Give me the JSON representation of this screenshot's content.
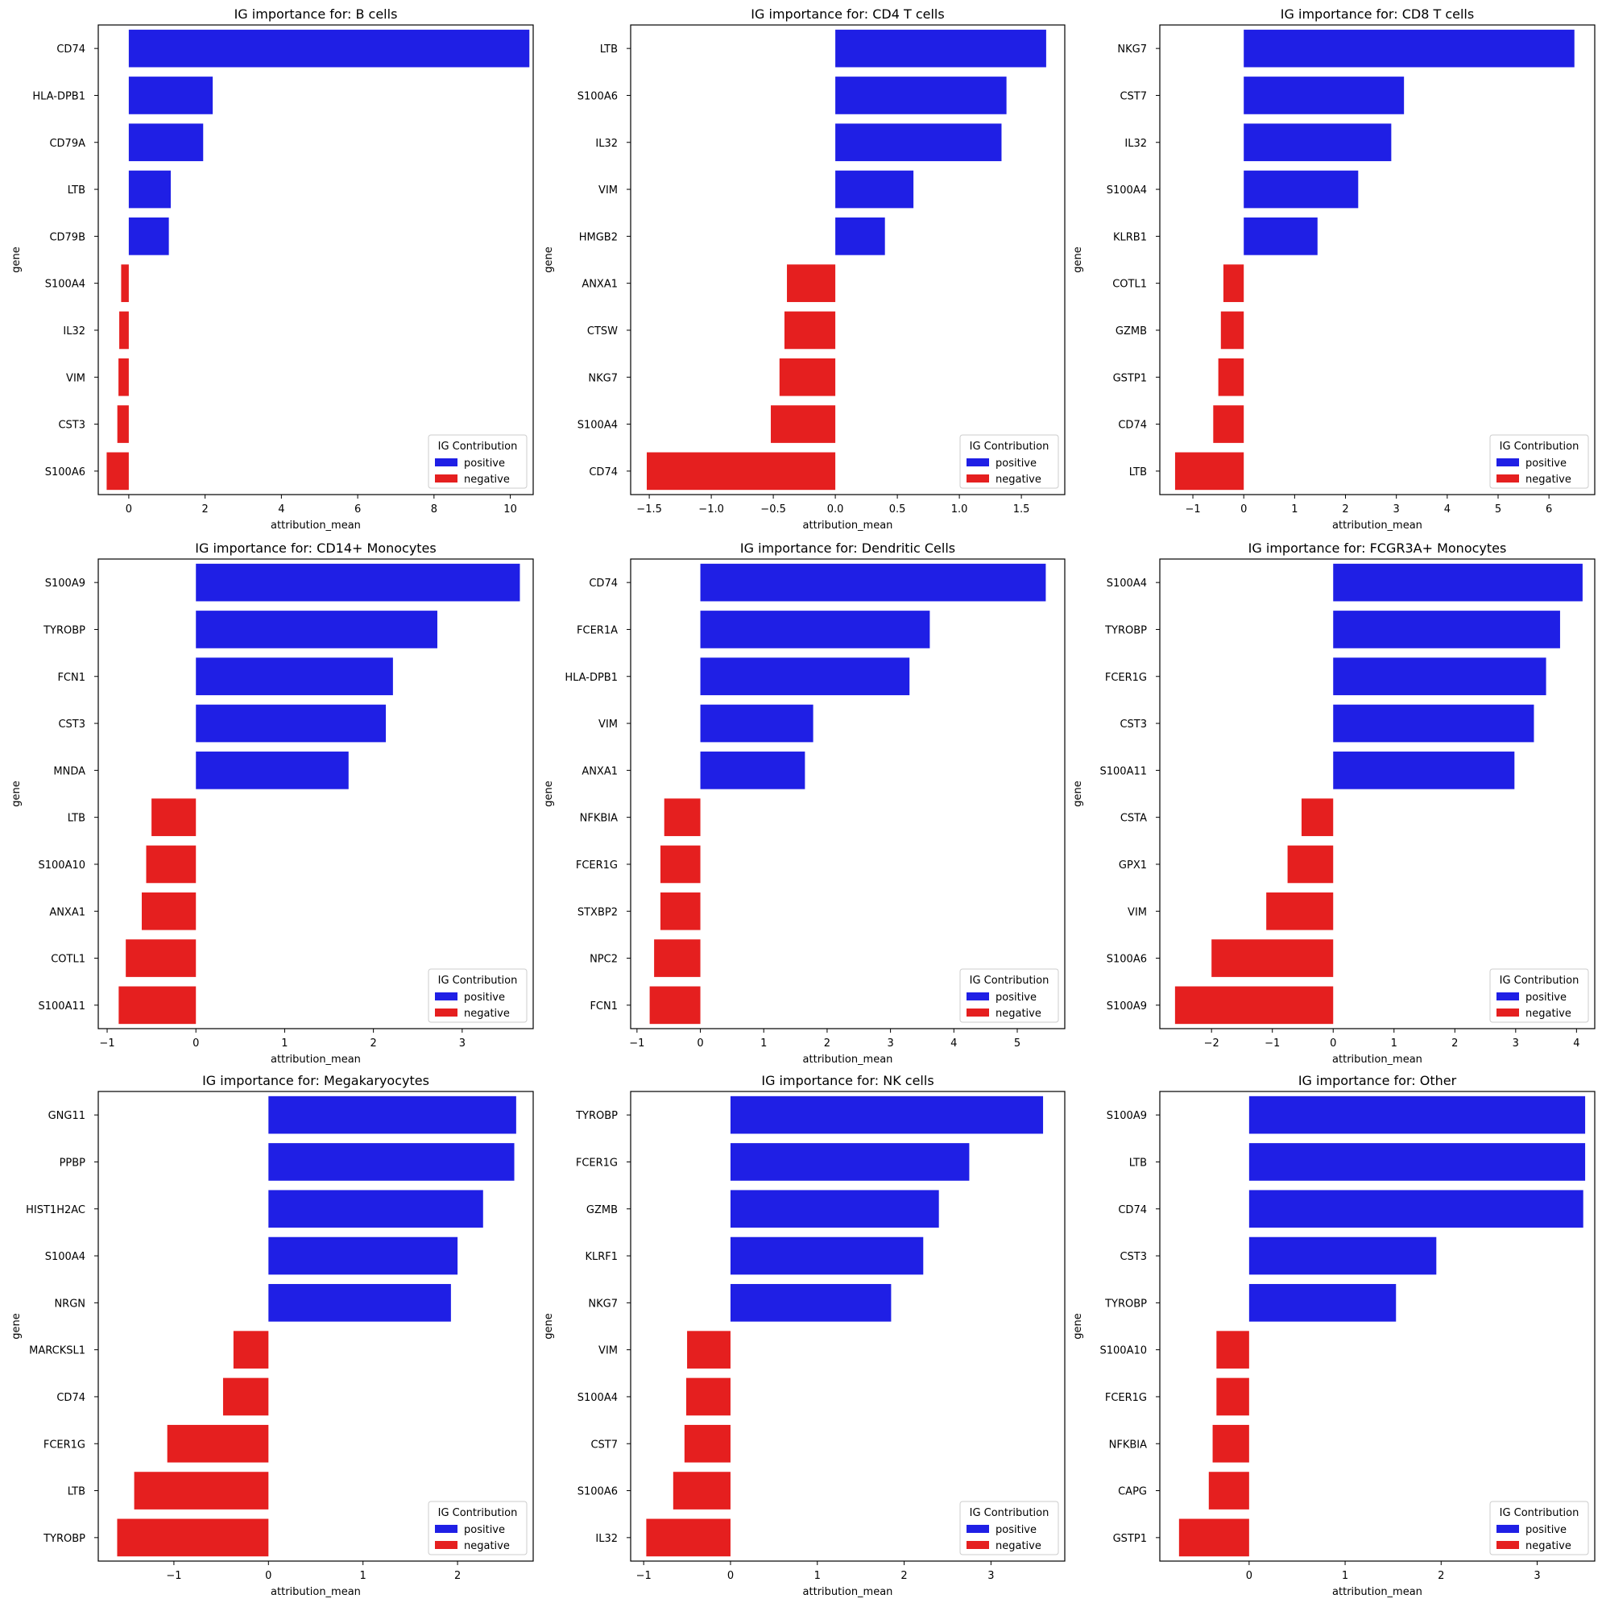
{
  "colors": {
    "positive": "#1f1fe5",
    "negative": "#e51f1f"
  },
  "chart_data": [
    {
      "type": "bar",
      "orientation": "horizontal",
      "title": "IG importance for: B cells",
      "xlabel": "attribution_mean",
      "ylabel": "gene",
      "xlim": [
        -0.8,
        10.6
      ],
      "xticks": [
        0,
        2,
        4,
        6,
        8,
        10
      ],
      "xtick_labels": [
        "0",
        "2",
        "4",
        "6",
        "8",
        "10"
      ],
      "categories": [
        "CD74",
        "HLA-DPB1",
        "CD79A",
        "LTB",
        "CD79B",
        "S100A4",
        "IL32",
        "VIM",
        "CST3",
        "S100A6"
      ],
      "values": [
        10.5,
        2.2,
        1.95,
        1.1,
        1.05,
        -0.2,
        -0.25,
        -0.27,
        -0.3,
        -0.58
      ],
      "legend": {
        "title": "IG Contribution",
        "entries": [
          "positive",
          "negative"
        ],
        "position": "lower-right"
      }
    },
    {
      "type": "bar",
      "orientation": "horizontal",
      "title": "IG importance for: CD4 T cells",
      "xlabel": "attribution_mean",
      "ylabel": "gene",
      "xlim": [
        -1.65,
        1.85
      ],
      "xticks": [
        -1.5,
        -1.0,
        -0.5,
        0.0,
        0.5,
        1.0,
        1.5
      ],
      "xtick_labels": [
        "−1.5",
        "−1.0",
        "−0.5",
        "0.0",
        "0.5",
        "1.0",
        "1.5"
      ],
      "categories": [
        "LTB",
        "S100A6",
        "IL32",
        "VIM",
        "HMGB2",
        "ANXA1",
        "CTSW",
        "NKG7",
        "S100A4",
        "CD74"
      ],
      "values": [
        1.7,
        1.38,
        1.34,
        0.63,
        0.4,
        -0.39,
        -0.41,
        -0.45,
        -0.52,
        -1.52
      ],
      "legend": {
        "title": "IG Contribution",
        "entries": [
          "positive",
          "negative"
        ],
        "position": "lower-right"
      }
    },
    {
      "type": "bar",
      "orientation": "horizontal",
      "title": "IG importance for: CD8 T cells",
      "xlabel": "attribution_mean",
      "ylabel": "gene",
      "xlim": [
        -1.65,
        6.9
      ],
      "xticks": [
        -1,
        0,
        1,
        2,
        3,
        4,
        5,
        6
      ],
      "xtick_labels": [
        "−1",
        "0",
        "1",
        "2",
        "3",
        "4",
        "5",
        "6"
      ],
      "categories": [
        "NKG7",
        "CST7",
        "IL32",
        "S100A4",
        "KLRB1",
        "COTL1",
        "GZMB",
        "GSTP1",
        "CD74",
        "LTB"
      ],
      "values": [
        6.5,
        3.15,
        2.9,
        2.25,
        1.45,
        -0.4,
        -0.45,
        -0.5,
        -0.6,
        -1.35
      ],
      "legend": {
        "title": "IG Contribution",
        "entries": [
          "positive",
          "negative"
        ],
        "position": "lower-right"
      }
    },
    {
      "type": "bar",
      "orientation": "horizontal",
      "title": "IG importance for: CD14+ Monocytes",
      "xlabel": "attribution_mean",
      "ylabel": "gene",
      "xlim": [
        -1.1,
        3.8
      ],
      "xticks": [
        -1,
        0,
        1,
        2,
        3
      ],
      "xtick_labels": [
        "−1",
        "0",
        "1",
        "2",
        "3"
      ],
      "categories": [
        "S100A9",
        "TYROBP",
        "FCN1",
        "CST3",
        "MNDA",
        "LTB",
        "S100A10",
        "ANXA1",
        "COTL1",
        "S100A11"
      ],
      "values": [
        3.65,
        2.72,
        2.22,
        2.14,
        1.72,
        -0.5,
        -0.56,
        -0.61,
        -0.79,
        -0.87
      ],
      "legend": {
        "title": "IG Contribution",
        "entries": [
          "positive",
          "negative"
        ],
        "position": "lower-right"
      }
    },
    {
      "type": "bar",
      "orientation": "horizontal",
      "title": "IG importance for: Dendritic Cells",
      "xlabel": "attribution_mean",
      "ylabel": "gene",
      "xlim": [
        -1.1,
        5.75
      ],
      "xticks": [
        -1,
        0,
        1,
        2,
        3,
        4,
        5
      ],
      "xtick_labels": [
        "−1",
        "0",
        "1",
        "2",
        "3",
        "4",
        "5"
      ],
      "categories": [
        "CD74",
        "FCER1A",
        "HLA-DPB1",
        "VIM",
        "ANXA1",
        "NFKBIA",
        "FCER1G",
        "STXBP2",
        "NPC2",
        "FCN1"
      ],
      "values": [
        5.45,
        3.62,
        3.3,
        1.78,
        1.65,
        -0.57,
        -0.63,
        -0.63,
        -0.73,
        -0.8
      ],
      "legend": {
        "title": "IG Contribution",
        "entries": [
          "positive",
          "negative"
        ],
        "position": "lower-right"
      }
    },
    {
      "type": "bar",
      "orientation": "horizontal",
      "title": "IG importance for: FCGR3A+ Monocytes",
      "xlabel": "attribution_mean",
      "ylabel": "gene",
      "xlim": [
        -2.85,
        4.3
      ],
      "xticks": [
        -2,
        -1,
        0,
        1,
        2,
        3,
        4
      ],
      "xtick_labels": [
        "−2",
        "−1",
        "0",
        "1",
        "2",
        "3",
        "4"
      ],
      "categories": [
        "S100A4",
        "TYROBP",
        "FCER1G",
        "CST3",
        "S100A11",
        "CSTA",
        "GPX1",
        "VIM",
        "S100A6",
        "S100A9"
      ],
      "values": [
        4.1,
        3.73,
        3.5,
        3.3,
        2.98,
        -0.52,
        -0.75,
        -1.1,
        -2.0,
        -2.6
      ],
      "legend": {
        "title": "IG Contribution",
        "entries": [
          "positive",
          "negative"
        ],
        "position": "lower-right"
      }
    },
    {
      "type": "bar",
      "orientation": "horizontal",
      "title": "IG importance for: Megakaryocytes",
      "xlabel": "attribution_mean",
      "ylabel": "gene",
      "xlim": [
        -1.8,
        2.8
      ],
      "xticks": [
        -1,
        0,
        1,
        2
      ],
      "xtick_labels": [
        "−1",
        "0",
        "1",
        "2"
      ],
      "categories": [
        "GNG11",
        "PPBP",
        "HIST1H2AC",
        "S100A4",
        "NRGN",
        "MARCKSL1",
        "CD74",
        "FCER1G",
        "LTB",
        "TYROBP"
      ],
      "values": [
        2.62,
        2.6,
        2.27,
        2.0,
        1.93,
        -0.37,
        -0.48,
        -1.07,
        -1.42,
        -1.6
      ],
      "legend": {
        "title": "IG Contribution",
        "entries": [
          "positive",
          "negative"
        ],
        "position": "lower-right"
      }
    },
    {
      "type": "bar",
      "orientation": "horizontal",
      "title": "IG importance for: NK cells",
      "xlabel": "attribution_mean",
      "ylabel": "gene",
      "xlim": [
        -1.15,
        3.85
      ],
      "xticks": [
        -1,
        0,
        1,
        2,
        3
      ],
      "xtick_labels": [
        "−1",
        "0",
        "1",
        "2",
        "3"
      ],
      "categories": [
        "TYROBP",
        "FCER1G",
        "GZMB",
        "KLRF1",
        "NKG7",
        "VIM",
        "S100A4",
        "CST7",
        "S100A6",
        "IL32"
      ],
      "values": [
        3.6,
        2.75,
        2.4,
        2.22,
        1.85,
        -0.5,
        -0.51,
        -0.53,
        -0.66,
        -0.97
      ],
      "legend": {
        "title": "IG Contribution",
        "entries": [
          "positive",
          "negative"
        ],
        "position": "lower-right"
      }
    },
    {
      "type": "bar",
      "orientation": "horizontal",
      "title": "IG importance for: Other",
      "xlabel": "attribution_mean",
      "ylabel": "gene",
      "xlim": [
        -0.93,
        3.6
      ],
      "xticks": [
        0,
        1,
        2,
        3
      ],
      "xtick_labels": [
        "0",
        "1",
        "2",
        "3"
      ],
      "categories": [
        "S100A9",
        "LTB",
        "CD74",
        "CST3",
        "TYROBP",
        "S100A10",
        "FCER1G",
        "NFKBIA",
        "CAPG",
        "GSTP1"
      ],
      "values": [
        3.5,
        3.5,
        3.48,
        1.95,
        1.53,
        -0.34,
        -0.34,
        -0.38,
        -0.42,
        -0.73
      ],
      "legend": {
        "title": "IG Contribution",
        "entries": [
          "positive",
          "negative"
        ],
        "position": "lower-right"
      }
    }
  ]
}
